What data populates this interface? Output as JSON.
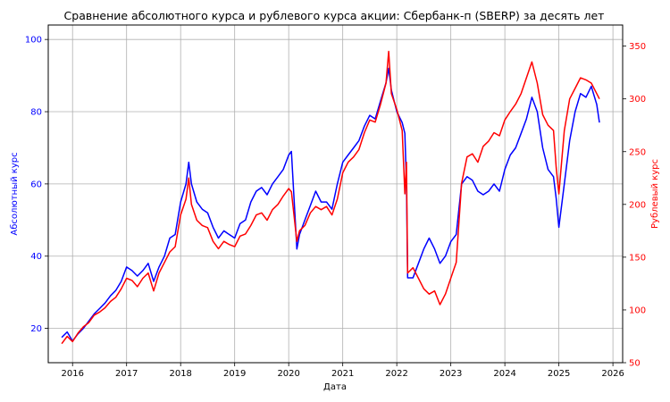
{
  "chart_data": {
    "type": "line",
    "title": "Сравнение абсолютного курса и рублевого курса акции: Сбербанк-п (SBERP) за десять лет",
    "xlabel": "Дата",
    "ylabel_left": "Абсолютный курс",
    "ylabel_right": "Рублевый курс",
    "xlim": [
      2015.55,
      2026.18
    ],
    "ylim_left": [
      10.5,
      104
    ],
    "ylim_right": [
      50,
      370
    ],
    "x_ticks": [
      2016,
      2017,
      2018,
      2019,
      2020,
      2021,
      2022,
      2023,
      2024,
      2025,
      2026
    ],
    "x_tick_labels": [
      "2016",
      "2017",
      "2018",
      "2019",
      "2020",
      "2021",
      "2022",
      "2023",
      "2024",
      "2025",
      "2026"
    ],
    "y_left_ticks": [
      20,
      40,
      60,
      80,
      100
    ],
    "y_left_tick_labels": [
      "20",
      "40",
      "60",
      "80",
      "100"
    ],
    "y_right_ticks": [
      50,
      100,
      150,
      200,
      250,
      300,
      350
    ],
    "y_right_tick_labels": [
      "50",
      "100",
      "150",
      "200",
      "250",
      "300",
      "350"
    ],
    "grid": true,
    "series": [
      {
        "axis": "left",
        "color": "#0000ff",
        "x": [
          2015.8,
          2015.9,
          2016.0,
          2016.1,
          2016.2,
          2016.3,
          2016.4,
          2016.5,
          2016.6,
          2016.7,
          2016.8,
          2016.9,
          2017.0,
          2017.1,
          2017.2,
          2017.3,
          2017.4,
          2017.5,
          2017.6,
          2017.7,
          2017.8,
          2017.9,
          2018.0,
          2018.1,
          2018.15,
          2018.2,
          2018.3,
          2018.4,
          2018.5,
          2018.6,
          2018.7,
          2018.8,
          2018.9,
          2019.0,
          2019.1,
          2019.2,
          2019.3,
          2019.4,
          2019.5,
          2019.6,
          2019.7,
          2019.8,
          2019.9,
          2020.0,
          2020.05,
          2020.15,
          2020.2,
          2020.3,
          2020.4,
          2020.5,
          2020.6,
          2020.7,
          2020.8,
          2020.9,
          2021.0,
          2021.1,
          2021.2,
          2021.3,
          2021.4,
          2021.5,
          2021.6,
          2021.7,
          2021.8,
          2021.85,
          2021.9,
          2022.0,
          2022.1,
          2022.15,
          2022.18,
          2022.2,
          2022.3,
          2022.4,
          2022.5,
          2022.6,
          2022.7,
          2022.8,
          2022.9,
          2023.0,
          2023.1,
          2023.2,
          2023.3,
          2023.4,
          2023.5,
          2023.6,
          2023.7,
          2023.8,
          2023.9,
          2024.0,
          2024.1,
          2024.2,
          2024.3,
          2024.4,
          2024.5,
          2024.6,
          2024.7,
          2024.8,
          2024.9,
          2024.95,
          2025.0,
          2025.1,
          2025.2,
          2025.3,
          2025.4,
          2025.5,
          2025.6,
          2025.7,
          2025.75
        ],
        "values": [
          17.5,
          19,
          16.5,
          18.5,
          20,
          22,
          24,
          25.5,
          27,
          29,
          30.5,
          33,
          37,
          36,
          34.5,
          36,
          38,
          33,
          37,
          40,
          45,
          46,
          55,
          60,
          66,
          60,
          55,
          53,
          52,
          48,
          45,
          47,
          46,
          45,
          49,
          50,
          55,
          58,
          59,
          57,
          60,
          62,
          64,
          68,
          69,
          42,
          46,
          50,
          54,
          58,
          55,
          55,
          53,
          60,
          66,
          68,
          70,
          72,
          76,
          79,
          78,
          83,
          88,
          92,
          86,
          80,
          77,
          74,
          60,
          34,
          34,
          38,
          42,
          45,
          42,
          38,
          40,
          44,
          46,
          60,
          62,
          61,
          58,
          57,
          58,
          60,
          58,
          64,
          68,
          70,
          74,
          78,
          84,
          80,
          70,
          64,
          62,
          56,
          48,
          60,
          72,
          80,
          85,
          84,
          87,
          82,
          77
        ]
      },
      {
        "axis": "right",
        "color": "#ff0000",
        "x": [
          2015.8,
          2015.9,
          2016.0,
          2016.1,
          2016.2,
          2016.3,
          2016.4,
          2016.5,
          2016.6,
          2016.7,
          2016.8,
          2016.9,
          2017.0,
          2017.1,
          2017.2,
          2017.3,
          2017.4,
          2017.5,
          2017.6,
          2017.7,
          2017.8,
          2017.9,
          2018.0,
          2018.1,
          2018.15,
          2018.2,
          2018.3,
          2018.4,
          2018.5,
          2018.6,
          2018.7,
          2018.8,
          2018.9,
          2019.0,
          2019.1,
          2019.2,
          2019.3,
          2019.4,
          2019.5,
          2019.6,
          2019.7,
          2019.8,
          2019.9,
          2020.0,
          2020.05,
          2020.15,
          2020.2,
          2020.3,
          2020.4,
          2020.5,
          2020.6,
          2020.7,
          2020.8,
          2020.9,
          2021.0,
          2021.1,
          2021.2,
          2021.3,
          2021.4,
          2021.5,
          2021.6,
          2021.7,
          2021.8,
          2021.85,
          2021.9,
          2022.0,
          2022.1,
          2022.15,
          2022.18,
          2022.2,
          2022.3,
          2022.4,
          2022.5,
          2022.6,
          2022.7,
          2022.8,
          2022.9,
          2023.0,
          2023.1,
          2023.2,
          2023.3,
          2023.4,
          2023.5,
          2023.6,
          2023.7,
          2023.8,
          2023.9,
          2024.0,
          2024.1,
          2024.2,
          2024.3,
          2024.4,
          2024.5,
          2024.6,
          2024.7,
          2024.8,
          2024.9,
          2024.95,
          2025.0,
          2025.1,
          2025.2,
          2025.3,
          2025.4,
          2025.5,
          2025.6,
          2025.7,
          2025.75
        ],
        "values": [
          68,
          75,
          70,
          78,
          84,
          88,
          95,
          98,
          102,
          108,
          112,
          120,
          130,
          128,
          122,
          130,
          135,
          118,
          135,
          145,
          155,
          160,
          190,
          205,
          225,
          200,
          185,
          180,
          178,
          165,
          158,
          165,
          162,
          160,
          170,
          172,
          180,
          190,
          192,
          185,
          195,
          200,
          208,
          215,
          212,
          165,
          175,
          180,
          192,
          198,
          195,
          198,
          190,
          205,
          230,
          240,
          245,
          252,
          268,
          280,
          278,
          295,
          315,
          345,
          305,
          290,
          270,
          210,
          240,
          135,
          140,
          130,
          120,
          115,
          118,
          105,
          115,
          130,
          145,
          220,
          245,
          248,
          240,
          255,
          260,
          268,
          265,
          280,
          288,
          295,
          305,
          320,
          335,
          315,
          285,
          275,
          270,
          235,
          210,
          270,
          300,
          310,
          320,
          318,
          315,
          305,
          300
        ]
      }
    ]
  }
}
